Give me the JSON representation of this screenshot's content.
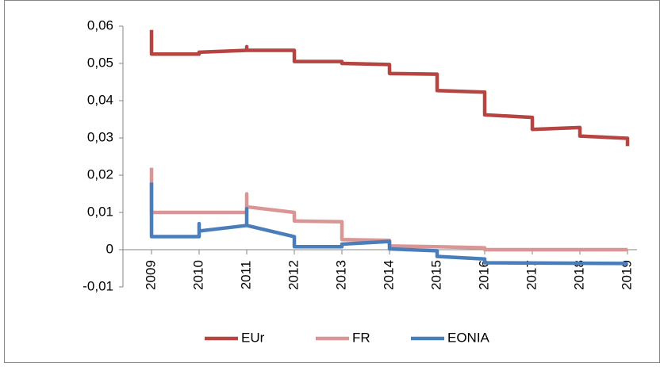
{
  "chart_data": {
    "type": "line",
    "xlim": [
      2008.4,
      2019.2
    ],
    "xticks": [
      2009,
      2010,
      2011,
      2012,
      2013,
      2014,
      2015,
      2016,
      2017,
      2018,
      2019
    ],
    "ylim": [
      -0.01,
      0.06
    ],
    "yticks": [
      {
        "value": -0.01,
        "label": "-0,01"
      },
      0,
      {
        "value": 0.01,
        "label": "0,01"
      },
      {
        "value": 0.02,
        "label": "0,02"
      },
      {
        "value": 0.03,
        "label": "0,03"
      },
      {
        "value": 0.04,
        "label": "0,04"
      },
      {
        "value": 0.05,
        "label": "0,05"
      },
      {
        "value": 0.06,
        "label": "0,06"
      }
    ],
    "legend": "bottom",
    "series": [
      {
        "name": "EUr",
        "color": "#b64441",
        "x": [
          2009,
          2009,
          2010,
          2010,
          2011,
          2011,
          2011,
          2012,
          2012,
          2013,
          2013,
          2014,
          2014,
          2015,
          2015,
          2016,
          2016,
          2017,
          2017,
          2018,
          2018,
          2019,
          2019
        ],
        "values": [
          0.059,
          0.0525,
          0.0525,
          0.053,
          0.0535,
          0.0545,
          0.0535,
          0.0535,
          0.0505,
          0.0505,
          0.05,
          0.0497,
          0.0473,
          0.0471,
          0.0427,
          0.0423,
          0.0362,
          0.0355,
          0.0323,
          0.0328,
          0.0305,
          0.0299,
          0.0278
        ]
      },
      {
        "name": "FR",
        "color": "#d99694",
        "x": [
          2009,
          2009,
          2011,
          2011,
          2011,
          2012,
          2012,
          2013,
          2013,
          2014,
          2014,
          2015,
          2016,
          2016,
          2019
        ],
        "values": [
          0.022,
          0.01,
          0.01,
          0.015,
          0.0115,
          0.01,
          0.0077,
          0.0075,
          0.0027,
          0.0025,
          0.001,
          0.0008,
          0.0005,
          0,
          0
        ]
      },
      {
        "name": "EONIA",
        "color": "#4a7ebb",
        "x": [
          2009,
          2009,
          2010,
          2010,
          2010,
          2011,
          2011,
          2011,
          2012,
          2012,
          2013,
          2013,
          2014,
          2014,
          2015,
          2015,
          2016,
          2016,
          2019
        ],
        "values": [
          0.018,
          0.0035,
          0.0035,
          0.007,
          0.005,
          0.0065,
          0.011,
          0.0065,
          0.0035,
          0.0008,
          0.0008,
          0.0015,
          0.0022,
          0.0002,
          -0.0003,
          -0.0018,
          -0.0025,
          -0.0035,
          -0.0037
        ]
      }
    ]
  }
}
